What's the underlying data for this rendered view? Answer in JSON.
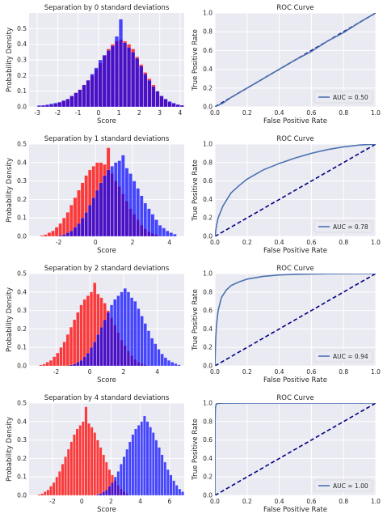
{
  "colors": {
    "panel_bg": "#eaeaf2",
    "grid": "#ffffff",
    "negative_bars": "#ff0000",
    "positive_bars": "#0000ff",
    "overlap_bars": "#7a00c8",
    "roc_line": "#4c72b0",
    "diagonal": "#000080",
    "text": "#262626"
  },
  "chart_data": [
    {
      "type": "bar",
      "title": "Separation by 0 standard deviations",
      "xlabel": "Score",
      "ylabel": "Probability Density",
      "xlim": [
        -3.4,
        4.2
      ],
      "ylim": [
        0,
        0.6
      ],
      "xticks": [
        -3,
        -2,
        -1,
        0,
        1,
        2,
        3,
        4
      ],
      "yticks": [
        0.0,
        0.1,
        0.2,
        0.3,
        0.4,
        0.5
      ],
      "bin_width": 0.2,
      "series": [
        {
          "name": "",
          "color": "red",
          "x_start": -3.0,
          "values": [
            0.005,
            0.01,
            0.01,
            0.015,
            0.02,
            0.03,
            0.04,
            0.05,
            0.07,
            0.09,
            0.11,
            0.14,
            0.17,
            0.2,
            0.24,
            0.28,
            0.33,
            0.37,
            0.4,
            0.42,
            0.43,
            0.42,
            0.4,
            0.37,
            0.32,
            0.27,
            0.22,
            0.18,
            0.14,
            0.1,
            0.07,
            0.05,
            0.03,
            0.02,
            0.015,
            0.01
          ]
        },
        {
          "name": "",
          "color": "blue",
          "x_start": -3.0,
          "values": [
            0.01,
            0.01,
            0.015,
            0.02,
            0.025,
            0.03,
            0.04,
            0.05,
            0.07,
            0.09,
            0.11,
            0.14,
            0.17,
            0.21,
            0.25,
            0.3,
            0.33,
            0.36,
            0.39,
            0.45,
            0.56,
            0.41,
            0.38,
            0.35,
            0.31,
            0.26,
            0.21,
            0.17,
            0.13,
            0.1,
            0.07,
            0.05,
            0.035,
            0.025,
            0.015,
            0.01
          ]
        }
      ]
    },
    {
      "type": "line",
      "title": "ROC Curve",
      "xlabel": "False Positive Rate",
      "ylabel": "True Positive Rate",
      "xlim": [
        0,
        1
      ],
      "ylim": [
        0,
        1
      ],
      "xticks": [
        0.0,
        0.2,
        0.4,
        0.6,
        0.8,
        1.0
      ],
      "yticks": [
        0.0,
        0.2,
        0.4,
        0.6,
        0.8,
        1.0
      ],
      "legend_label": "AUC = 0.50",
      "legend_position": "lower-right",
      "x": [
        0,
        0.05,
        0.1,
        0.15,
        0.2,
        0.3,
        0.4,
        0.5,
        0.6,
        0.7,
        0.8,
        0.9,
        1.0
      ],
      "y": [
        0,
        0.04,
        0.1,
        0.15,
        0.2,
        0.3,
        0.4,
        0.5,
        0.59,
        0.7,
        0.79,
        0.9,
        1.0
      ]
    },
    {
      "type": "bar",
      "title": "Separation by 1 standard deviations",
      "xlabel": "Score",
      "ylabel": "Probability Density",
      "xlim": [
        -3.6,
        4.8
      ],
      "ylim": [
        0,
        0.5
      ],
      "xticks": [
        -2,
        0,
        2,
        4
      ],
      "yticks": [
        0.0,
        0.1,
        0.2,
        0.3,
        0.4,
        0.5
      ],
      "bin_width": 0.2,
      "series": [
        {
          "name": "",
          "color": "red",
          "x_start": -3.0,
          "values": [
            0.005,
            0.01,
            0.02,
            0.03,
            0.05,
            0.07,
            0.1,
            0.13,
            0.17,
            0.21,
            0.25,
            0.29,
            0.33,
            0.36,
            0.38,
            0.4,
            0.4,
            0.39,
            0.48,
            0.34,
            0.3,
            0.27,
            0.23,
            0.19,
            0.15,
            0.12,
            0.09,
            0.06,
            0.04,
            0.025,
            0.015,
            0.01
          ]
        },
        {
          "name": "",
          "color": "blue",
          "x_start": -2.0,
          "values": [
            0.005,
            0.01,
            0.02,
            0.03,
            0.05,
            0.07,
            0.1,
            0.13,
            0.17,
            0.21,
            0.25,
            0.29,
            0.33,
            0.36,
            0.38,
            0.4,
            0.41,
            0.44,
            0.37,
            0.34,
            0.3,
            0.26,
            0.22,
            0.18,
            0.15,
            0.12,
            0.09,
            0.06,
            0.045,
            0.03,
            0.02,
            0.012
          ]
        }
      ]
    },
    {
      "type": "line",
      "title": "",
      "xlabel": "False Positive Rate",
      "ylabel": "True Positive Rate",
      "xlim": [
        0,
        1
      ],
      "ylim": [
        0,
        1
      ],
      "xticks": [
        0.0,
        0.2,
        0.4,
        0.6,
        0.8,
        1.0
      ],
      "yticks": [
        0.0,
        0.2,
        0.4,
        0.6,
        0.8,
        1.0
      ],
      "legend_label": "AUC = 0.78",
      "legend_position": "lower-right",
      "x": [
        0,
        0.01,
        0.02,
        0.05,
        0.1,
        0.15,
        0.2,
        0.3,
        0.4,
        0.5,
        0.6,
        0.7,
        0.8,
        0.9,
        1.0
      ],
      "y": [
        0,
        0.12,
        0.2,
        0.33,
        0.47,
        0.55,
        0.62,
        0.72,
        0.79,
        0.85,
        0.9,
        0.94,
        0.97,
        0.99,
        1.0
      ]
    },
    {
      "type": "bar",
      "title": "Separation by 2 standard deviations",
      "xlabel": "Score",
      "ylabel": "Probability Density",
      "xlim": [
        -3.6,
        5.6
      ],
      "ylim": [
        0,
        0.5
      ],
      "xticks": [
        -2,
        0,
        2,
        4
      ],
      "yticks": [
        0.0,
        0.1,
        0.2,
        0.3,
        0.4,
        0.5
      ],
      "bin_width": 0.2,
      "series": [
        {
          "name": "",
          "color": "red",
          "x_start": -3.0,
          "values": [
            0.005,
            0.01,
            0.02,
            0.03,
            0.05,
            0.07,
            0.1,
            0.13,
            0.17,
            0.21,
            0.25,
            0.29,
            0.33,
            0.36,
            0.38,
            0.4,
            0.45,
            0.39,
            0.37,
            0.34,
            0.3,
            0.26,
            0.22,
            0.18,
            0.14,
            0.11,
            0.08,
            0.055,
            0.035,
            0.02,
            0.012,
            0.006
          ]
        },
        {
          "name": "",
          "color": "blue",
          "x_start": -1.2,
          "values": [
            0.005,
            0.01,
            0.02,
            0.03,
            0.05,
            0.07,
            0.1,
            0.13,
            0.17,
            0.21,
            0.25,
            0.29,
            0.33,
            0.36,
            0.38,
            0.4,
            0.42,
            0.4,
            0.37,
            0.35,
            0.31,
            0.27,
            0.23,
            0.19,
            0.15,
            0.12,
            0.09,
            0.065,
            0.045,
            0.03,
            0.02,
            0.012,
            0.006
          ]
        }
      ]
    },
    {
      "type": "line",
      "title": "",
      "xlabel": "False Positive Rate",
      "ylabel": "True Positive Rate",
      "xlim": [
        0,
        1
      ],
      "ylim": [
        0,
        1
      ],
      "xticks": [
        0.0,
        0.2,
        0.4,
        0.6,
        0.8,
        1.0
      ],
      "yticks": [
        0.0,
        0.2,
        0.4,
        0.6,
        0.8,
        1.0
      ],
      "legend_label": "AUC = 0.94",
      "legend_position": "lower-right",
      "x": [
        0,
        0.005,
        0.01,
        0.02,
        0.04,
        0.07,
        0.1,
        0.15,
        0.2,
        0.3,
        0.4,
        0.5,
        0.7,
        1.0
      ],
      "y": [
        0,
        0.3,
        0.45,
        0.6,
        0.74,
        0.82,
        0.87,
        0.91,
        0.94,
        0.97,
        0.985,
        0.993,
        0.998,
        1.0
      ]
    },
    {
      "type": "bar",
      "title": "Separation by 4 standard deviations",
      "xlabel": "Score",
      "ylabel": "Probability Density",
      "xlim": [
        -3.6,
        7.0
      ],
      "ylim": [
        0,
        0.5
      ],
      "xticks": [
        -2,
        0,
        2,
        4,
        6
      ],
      "yticks": [
        0.0,
        0.1,
        0.2,
        0.3,
        0.4,
        0.5
      ],
      "bin_width": 0.2,
      "series": [
        {
          "name": "",
          "color": "red",
          "x_start": -3.0,
          "values": [
            0.005,
            0.01,
            0.02,
            0.03,
            0.05,
            0.07,
            0.1,
            0.13,
            0.17,
            0.21,
            0.25,
            0.29,
            0.33,
            0.36,
            0.38,
            0.4,
            0.48,
            0.39,
            0.37,
            0.34,
            0.3,
            0.26,
            0.22,
            0.18,
            0.14,
            0.11,
            0.08,
            0.055,
            0.035,
            0.02,
            0.01
          ]
        },
        {
          "name": "",
          "color": "blue",
          "x_start": 1.0,
          "values": [
            0.005,
            0.01,
            0.02,
            0.03,
            0.05,
            0.07,
            0.1,
            0.13,
            0.17,
            0.21,
            0.25,
            0.29,
            0.33,
            0.36,
            0.38,
            0.4,
            0.43,
            0.4,
            0.37,
            0.34,
            0.3,
            0.26,
            0.22,
            0.18,
            0.14,
            0.11,
            0.08,
            0.055,
            0.035,
            0.02,
            0.01
          ]
        }
      ]
    },
    {
      "type": "line",
      "title": "ROC Curve",
      "xlabel": "False Positive Rate",
      "ylabel": "True Positive Rate",
      "xlim": [
        0,
        1
      ],
      "ylim": [
        0,
        1
      ],
      "xticks": [
        0.0,
        0.2,
        0.4,
        0.6,
        0.8,
        1.0
      ],
      "yticks": [
        0.0,
        0.2,
        0.4,
        0.6,
        0.8,
        1.0
      ],
      "legend_label": "AUC = 1.00",
      "legend_position": "lower-right",
      "x": [
        0,
        0.001,
        0.003,
        0.008,
        0.02,
        0.05,
        0.2,
        1.0
      ],
      "y": [
        0,
        0.8,
        0.95,
        0.99,
        0.997,
        0.999,
        1.0,
        1.0
      ]
    }
  ],
  "panel_titles_extra": {
    "roc_rows": [
      "ROC Curve",
      "ROC Curve",
      "ROC Curve",
      "ROC Curve"
    ]
  }
}
